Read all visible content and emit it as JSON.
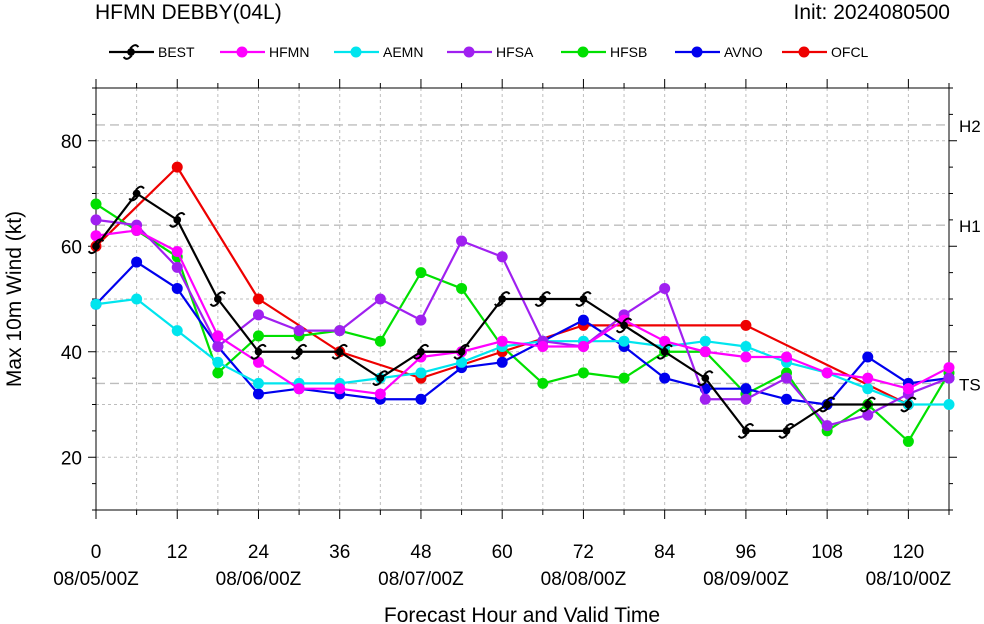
{
  "header": {
    "title": "HFMN DEBBY(04L)",
    "init": "Init: 2024080500"
  },
  "colors": {
    "BEST": "#000000",
    "HFMN": "#ff00ff",
    "AEMN": "#00e5ee",
    "HFSA": "#a020f0",
    "HFSB": "#00e000",
    "AVNO": "#0000ee",
    "OFCL": "#ee0000",
    "grid": "#bdbdbd",
    "threshold": "#bdbdbd"
  },
  "chart_data": {
    "type": "line",
    "title": "HFMN DEBBY(04L)",
    "xlabel": "Forecast Hour and Valid Time",
    "ylabel": "Max 10m Wind (kt)",
    "xlim": [
      0,
      126
    ],
    "ylim": [
      10,
      90
    ],
    "grid": true,
    "legend_position": "top",
    "x_ticks": [
      0,
      12,
      24,
      36,
      48,
      60,
      72,
      84,
      96,
      108,
      120
    ],
    "x_date_labels": [
      {
        "x": 0,
        "label": "08/05/00Z"
      },
      {
        "x": 24,
        "label": "08/06/00Z"
      },
      {
        "x": 48,
        "label": "08/07/00Z"
      },
      {
        "x": 72,
        "label": "08/08/00Z"
      },
      {
        "x": 96,
        "label": "08/09/00Z"
      },
      {
        "x": 120,
        "label": "08/10/00Z"
      }
    ],
    "y_ticks": [
      20,
      40,
      60,
      80
    ],
    "thresholds": [
      {
        "label": "TS",
        "value": 34
      },
      {
        "label": "H1",
        "value": 64
      },
      {
        "label": "H2",
        "value": 83
      }
    ],
    "series": [
      {
        "name": "BEST",
        "marker": "hurricane",
        "x": [
          0,
          6,
          12,
          18,
          24,
          30,
          36,
          42,
          48,
          54,
          60,
          66,
          72,
          78,
          84,
          90,
          96,
          102,
          108,
          114,
          120
        ],
        "y": [
          60,
          70,
          65,
          50,
          40,
          40,
          40,
          35,
          40,
          40,
          50,
          50,
          50,
          45,
          40,
          35,
          25,
          25,
          30,
          30,
          30
        ]
      },
      {
        "name": "HFMN",
        "marker": "circle",
        "x": [
          0,
          6,
          12,
          18,
          24,
          30,
          36,
          42,
          48,
          54,
          60,
          66,
          72,
          78,
          84,
          90,
          96,
          102,
          108,
          114,
          120,
          126
        ],
        "y": [
          62,
          63,
          59,
          43,
          38,
          33,
          33,
          32,
          39,
          40,
          42,
          41,
          41,
          46,
          42,
          40,
          39,
          39,
          36,
          35,
          33,
          37
        ]
      },
      {
        "name": "AEMN",
        "marker": "circle",
        "x": [
          0,
          6,
          12,
          18,
          24,
          30,
          36,
          42,
          48,
          54,
          60,
          66,
          72,
          78,
          84,
          90,
          96,
          102,
          108,
          114,
          120,
          126
        ],
        "y": [
          49,
          50,
          44,
          38,
          34,
          34,
          34,
          35,
          36,
          38,
          41,
          42,
          42,
          42,
          41,
          42,
          41,
          38,
          36,
          33,
          30,
          30
        ]
      },
      {
        "name": "HFSA",
        "marker": "circle",
        "x": [
          0,
          6,
          12,
          18,
          24,
          30,
          36,
          42,
          48,
          54,
          60,
          66,
          72,
          78,
          84,
          90,
          96,
          102,
          108,
          114,
          120,
          126
        ],
        "y": [
          65,
          64,
          56,
          41,
          47,
          44,
          44,
          50,
          46,
          61,
          58,
          42,
          41,
          47,
          52,
          31,
          31,
          35,
          26,
          28,
          32,
          35
        ]
      },
      {
        "name": "HFSB",
        "marker": "circle",
        "x": [
          0,
          6,
          12,
          18,
          24,
          30,
          36,
          42,
          48,
          54,
          60,
          66,
          72,
          78,
          84,
          90,
          96,
          102,
          108,
          114,
          120,
          126
        ],
        "y": [
          68,
          63,
          58,
          36,
          43,
          43,
          44,
          42,
          55,
          52,
          41,
          34,
          36,
          35,
          40,
          40,
          32,
          36,
          25,
          30,
          23,
          36
        ]
      },
      {
        "name": "AVNO",
        "marker": "circle",
        "x": [
          0,
          6,
          12,
          18,
          24,
          30,
          36,
          42,
          48,
          54,
          60,
          66,
          72,
          78,
          84,
          90,
          96,
          102,
          108,
          114,
          120,
          126
        ],
        "y": [
          49,
          57,
          52,
          41,
          32,
          33,
          32,
          31,
          31,
          37,
          38,
          42,
          46,
          41,
          35,
          33,
          33,
          31,
          30,
          39,
          34,
          35
        ]
      },
      {
        "name": "OFCL",
        "marker": "circle",
        "x": [
          0,
          12,
          24,
          36,
          48,
          60,
          72,
          96,
          120
        ],
        "y": [
          60,
          75,
          50,
          40,
          35,
          40,
          45,
          45,
          30
        ]
      }
    ]
  }
}
